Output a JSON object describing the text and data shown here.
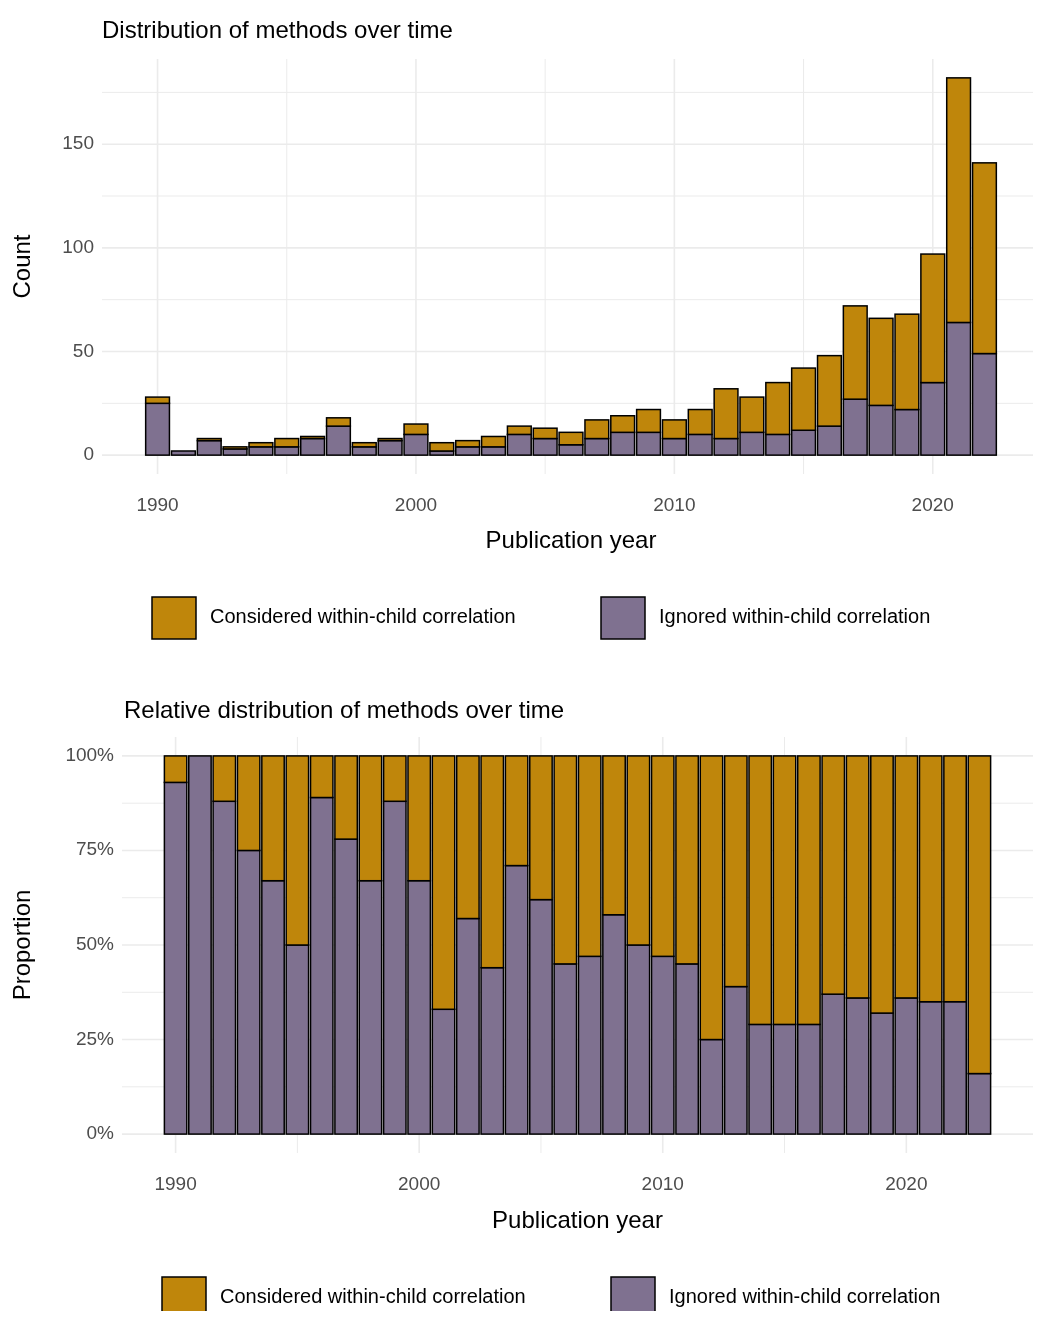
{
  "chart_data": [
    {
      "type": "bar",
      "title": "Distribution of methods over time",
      "xlabel": "Publication year",
      "ylabel": "Count",
      "stacked": true,
      "legend": "bottom",
      "grid": true,
      "x": [
        1990,
        1991,
        1992,
        1993,
        1994,
        1995,
        1996,
        1997,
        1998,
        1999,
        2000,
        2001,
        2002,
        2003,
        2004,
        2005,
        2006,
        2007,
        2008,
        2009,
        2010,
        2011,
        2012,
        2013,
        2014,
        2015,
        2016,
        2017,
        2018,
        2019,
        2020,
        2021,
        2022
      ],
      "series": [
        {
          "name": "Ignored within-child correlation",
          "color": "#7f7190",
          "values": [
            25,
            2,
            7,
            3,
            4,
            4,
            8,
            14,
            4,
            7,
            10,
            2,
            4,
            4,
            10,
            8,
            5,
            8,
            11,
            11,
            8,
            10,
            8,
            11,
            10,
            12,
            14,
            27,
            24,
            22,
            35,
            64,
            49
          ]
        },
        {
          "name": "Considered within-child correlation",
          "color": "#bf860b",
          "values": [
            3,
            0,
            1,
            1,
            2,
            4,
            1,
            4,
            2,
            1,
            5,
            4,
            3,
            5,
            4,
            5,
            6,
            9,
            8,
            11,
            9,
            12,
            24,
            17,
            25,
            30,
            34,
            45,
            42,
            46,
            62,
            118,
            92
          ]
        }
      ],
      "xlim": [
        1987.85,
        2024.15
      ],
      "xticks": [
        1990,
        {
          "value": 1995,
          "label": null
        },
        2000,
        {
          "value": 2005,
          "label": null
        },
        2010,
        {
          "value": 2015,
          "label": null
        },
        2020
      ],
      "ylim": [
        -9.1,
        191.1
      ],
      "yticks": [
        0,
        {
          "value": 25,
          "label": null
        },
        50,
        {
          "value": 75,
          "label": null
        },
        100,
        {
          "value": 125,
          "label": null
        },
        150,
        {
          "value": 175,
          "label": null
        }
      ]
    },
    {
      "type": "bar",
      "title": "Relative distribution of methods over time",
      "xlabel": "Publication year",
      "ylabel": "Proportion",
      "stacked": true,
      "legend": "bottom",
      "grid": true,
      "x": [
        1990,
        1991,
        1992,
        1993,
        1994,
        1995,
        1996,
        1997,
        1998,
        1999,
        2000,
        2001,
        2002,
        2003,
        2004,
        2005,
        2006,
        2007,
        2008,
        2009,
        2010,
        2011,
        2012,
        2013,
        2014,
        2015,
        2016,
        2017,
        2018,
        2019,
        2020,
        2021,
        2022,
        2023
      ],
      "series": [
        {
          "name": "Ignored within-child correlation",
          "color": "#7f7190",
          "values": [
            93,
            100,
            88,
            75,
            67,
            50,
            89,
            78,
            67,
            88,
            67,
            33,
            57,
            44,
            71,
            62,
            45,
            47,
            58,
            50,
            47,
            45,
            25,
            39,
            29,
            29,
            29,
            37,
            36,
            32,
            36,
            35,
            35,
            16
          ]
        },
        {
          "name": "Considered within-child correlation",
          "color": "#bf860b",
          "values": [
            7,
            0,
            12,
            25,
            33,
            50,
            11,
            22,
            33,
            12,
            33,
            67,
            43,
            56,
            29,
            38,
            55,
            53,
            42,
            50,
            53,
            55,
            75,
            61,
            71,
            71,
            71,
            63,
            64,
            68,
            64,
            65,
            65,
            84
          ]
        }
      ],
      "xlim": [
        1987.8,
        2025.2
      ],
      "xticks": [
        1990,
        {
          "value": 1995,
          "label": null
        },
        2000,
        {
          "value": 2005,
          "label": null
        },
        2010,
        {
          "value": 2015,
          "label": null
        },
        2020
      ],
      "ylim": [
        -5,
        105
      ],
      "yticks": [
        {
          "value": 0,
          "label": "0%"
        },
        {
          "value": 12.5,
          "label": null
        },
        {
          "value": 25,
          "label": "25%"
        },
        {
          "value": 37.5,
          "label": null
        },
        {
          "value": 50,
          "label": "50%"
        },
        {
          "value": 62.5,
          "label": null
        },
        {
          "value": 75,
          "label": "75%"
        },
        {
          "value": 87.5,
          "label": null
        },
        {
          "value": 100,
          "label": "100%"
        }
      ]
    }
  ]
}
